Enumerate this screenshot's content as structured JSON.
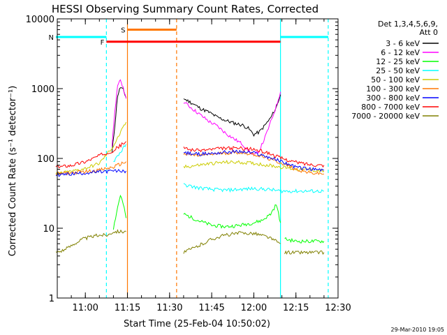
{
  "chart_data": {
    "type": "line",
    "title": "HESSI Observing Summary Count Rates, Corrected",
    "xlabel": "Start Time (25-Feb-04 10:50:02)",
    "ylabel": "Corrected Count Rate (s⁻¹ detector⁻¹)",
    "x_unit": "minutes since 10:50:02",
    "xlim": [
      0,
      100
    ],
    "ylim": [
      1,
      10000
    ],
    "yscale": "log",
    "x_ticks": [
      {
        "value": 10,
        "label": "11:00"
      },
      {
        "value": 25,
        "label": "11:15"
      },
      {
        "value": 40,
        "label": "11:30"
      },
      {
        "value": 55,
        "label": "11:45"
      },
      {
        "value": 70,
        "label": "12:00"
      },
      {
        "value": 85,
        "label": "12:15"
      },
      {
        "value": 100,
        "label": "12:30"
      }
    ],
    "y_ticks": [
      {
        "value": 1,
        "label": "1"
      },
      {
        "value": 10,
        "label": "10"
      },
      {
        "value": 100,
        "label": "100"
      },
      {
        "value": 1000,
        "label": "1000"
      },
      {
        "value": 10000,
        "label": "10000"
      }
    ],
    "legend": {
      "placement": "right",
      "header": [
        "Det 1,3,4,5,6,9,",
        "Att 0"
      ]
    },
    "series": [
      {
        "name": "3 - 6 keV",
        "color": "#000000",
        "segments": [
          {
            "x": [
              19.5,
              20.5,
              21.5,
              22.5,
              23.5,
              24.5
            ],
            "y": [
              120,
              300,
              800,
              1050,
              950,
              750
            ]
          },
          {
            "x": [
              45,
              48,
              51,
              54,
              57,
              60,
              63,
              66,
              68,
              70,
              72,
              74,
              76,
              78,
              79.5
            ],
            "y": [
              720,
              620,
              520,
              460,
              390,
              350,
              320,
              300,
              270,
              220,
              240,
              300,
              380,
              540,
              820
            ]
          }
        ]
      },
      {
        "name": "6 - 12 keV",
        "color": "#ff00ff",
        "segments": [
          {
            "x": [
              19.5,
              20.5,
              21.5,
              22.5,
              23.5,
              24.5
            ],
            "y": [
              150,
              500,
              1050,
              1350,
              1000,
              720
            ]
          },
          {
            "x": [
              45,
              48,
              51,
              54,
              57,
              60,
              63,
              66,
              68,
              70,
              72,
              74,
              76,
              78,
              79.5
            ],
            "y": [
              650,
              520,
              420,
              340,
              290,
              230,
              190,
              160,
              130,
              110,
              130,
              200,
              330,
              560,
              900
            ]
          }
        ]
      },
      {
        "name": "12 - 25 keV",
        "color": "#00ff00",
        "segments": [
          {
            "x": [
              20,
              21.5,
              22.5,
              23.5,
              24.5
            ],
            "y": [
              10,
              20,
              30,
              22,
              14
            ]
          },
          {
            "x": [
              45,
              50,
              55,
              60,
              65,
              70,
              73,
              76,
              78,
              79.5
            ],
            "y": [
              16,
              13,
              11,
              10.5,
              11,
              12,
              13,
              16,
              22,
              12
            ]
          },
          {
            "x": [
              81,
              85,
              90,
              95
            ],
            "y": [
              7,
              6.5,
              6.5,
              6.5
            ]
          }
        ]
      },
      {
        "name": "25 - 50 keV",
        "color": "#00ffff",
        "segments": [
          {
            "x": [
              20,
              21.5,
              23,
              24.5
            ],
            "y": [
              90,
              110,
              130,
              160
            ]
          },
          {
            "x": [
              45,
              50,
              55,
              60,
              65,
              70,
              75,
              80,
              85,
              90,
              95
            ],
            "y": [
              42,
              38,
              36,
              35,
              36,
              37,
              36,
              34,
              34,
              34,
              34
            ]
          }
        ]
      },
      {
        "name": "50 - 100 keV",
        "color": "#cccc00",
        "segments": [
          {
            "x": [
              -0.5,
              5,
              10,
              15,
              20,
              24.5
            ],
            "y": [
              60,
              65,
              72,
              85,
              150,
              330
            ]
          },
          {
            "x": [
              45,
              50,
              55,
              60,
              65,
              70,
              75,
              80,
              85,
              90,
              95
            ],
            "y": [
              75,
              80,
              85,
              88,
              88,
              85,
              80,
              75,
              70,
              68,
              66
            ]
          }
        ]
      },
      {
        "name": "100 - 300 keV",
        "color": "#ff7700",
        "segments": [
          {
            "x": [
              -0.5,
              5,
              10,
              15,
              20,
              24.5
            ],
            "y": [
              60,
              62,
              65,
              68,
              75,
              90
            ]
          },
          {
            "x": [
              45,
              50,
              55,
              60,
              65,
              70,
              75,
              80,
              85,
              90,
              95
            ],
            "y": [
              115,
              110,
              115,
              120,
              122,
              115,
              100,
              85,
              70,
              62,
              60
            ]
          }
        ]
      },
      {
        "name": "300 - 800 keV",
        "color": "#0000ff",
        "segments": [
          {
            "x": [
              -0.5,
              5,
              10,
              15,
              20,
              24.5
            ],
            "y": [
              58,
              60,
              62,
              64,
              66,
              66
            ]
          },
          {
            "x": [
              45,
              50,
              55,
              60,
              65,
              70,
              75,
              80,
              85,
              90,
              95
            ],
            "y": [
              120,
              115,
              118,
              123,
              125,
              120,
              105,
              90,
              75,
              70,
              68
            ]
          }
        ]
      },
      {
        "name": "800 - 7000 keV",
        "color": "#ff0000",
        "segments": [
          {
            "x": [
              -0.5,
              5,
              10,
              15,
              20,
              24.5
            ],
            "y": [
              75,
              80,
              90,
              110,
              130,
              175
            ]
          },
          {
            "x": [
              45,
              50,
              55,
              60,
              65,
              70,
              75,
              80,
              85,
              90,
              95
            ],
            "y": [
              140,
              130,
              135,
              140,
              140,
              135,
              120,
              100,
              88,
              82,
              80
            ]
          }
        ]
      },
      {
        "name": "7000 - 20000 keV",
        "color": "#808000",
        "segments": [
          {
            "x": [
              -0.5,
              3,
              6,
              9,
              12,
              15,
              18,
              20,
              24.5
            ],
            "y": [
              4.5,
              5,
              6,
              7,
              7.5,
              8,
              8,
              9,
              9
            ]
          },
          {
            "x": [
              45,
              50,
              55,
              60,
              65,
              70,
              75,
              79.5
            ],
            "y": [
              4.5,
              5.5,
              7,
              8,
              8.5,
              8.5,
              7.5,
              6
            ]
          },
          {
            "x": [
              81,
              85,
              90,
              95
            ],
            "y": [
              4.5,
              4.5,
              4.5,
              4.5
            ]
          }
        ]
      }
    ],
    "attenuator_flags": [
      {
        "label": "F",
        "color": "#ff0000",
        "y": 4700,
        "x_start": 17.5,
        "x_end": 79.5
      },
      {
        "label": "S",
        "color": "#ff7700",
        "y": 7000,
        "x_start": 25,
        "x_end": 42.5
      },
      {
        "label": "N",
        "color": "#00ffff",
        "y": 5500,
        "x_start": -0.5,
        "x_end": 17.5
      },
      {
        "label": "",
        "color": "#00ffff",
        "y": 5500,
        "x_start": 79.5,
        "x_end": 96.5
      }
    ],
    "marker_lines": [
      {
        "x": 17.5,
        "color": "#00ffff",
        "style": "dashed"
      },
      {
        "x": 25,
        "color": "#ff7700",
        "style": "solid"
      },
      {
        "x": 42.5,
        "color": "#ff7700",
        "style": "dashed"
      },
      {
        "x": 79.5,
        "color": "#00ffff",
        "style": "solid"
      },
      {
        "x": 96.5,
        "color": "#00ffff",
        "style": "dashed"
      }
    ],
    "timestamp": "29-Mar-2010 19:05"
  }
}
